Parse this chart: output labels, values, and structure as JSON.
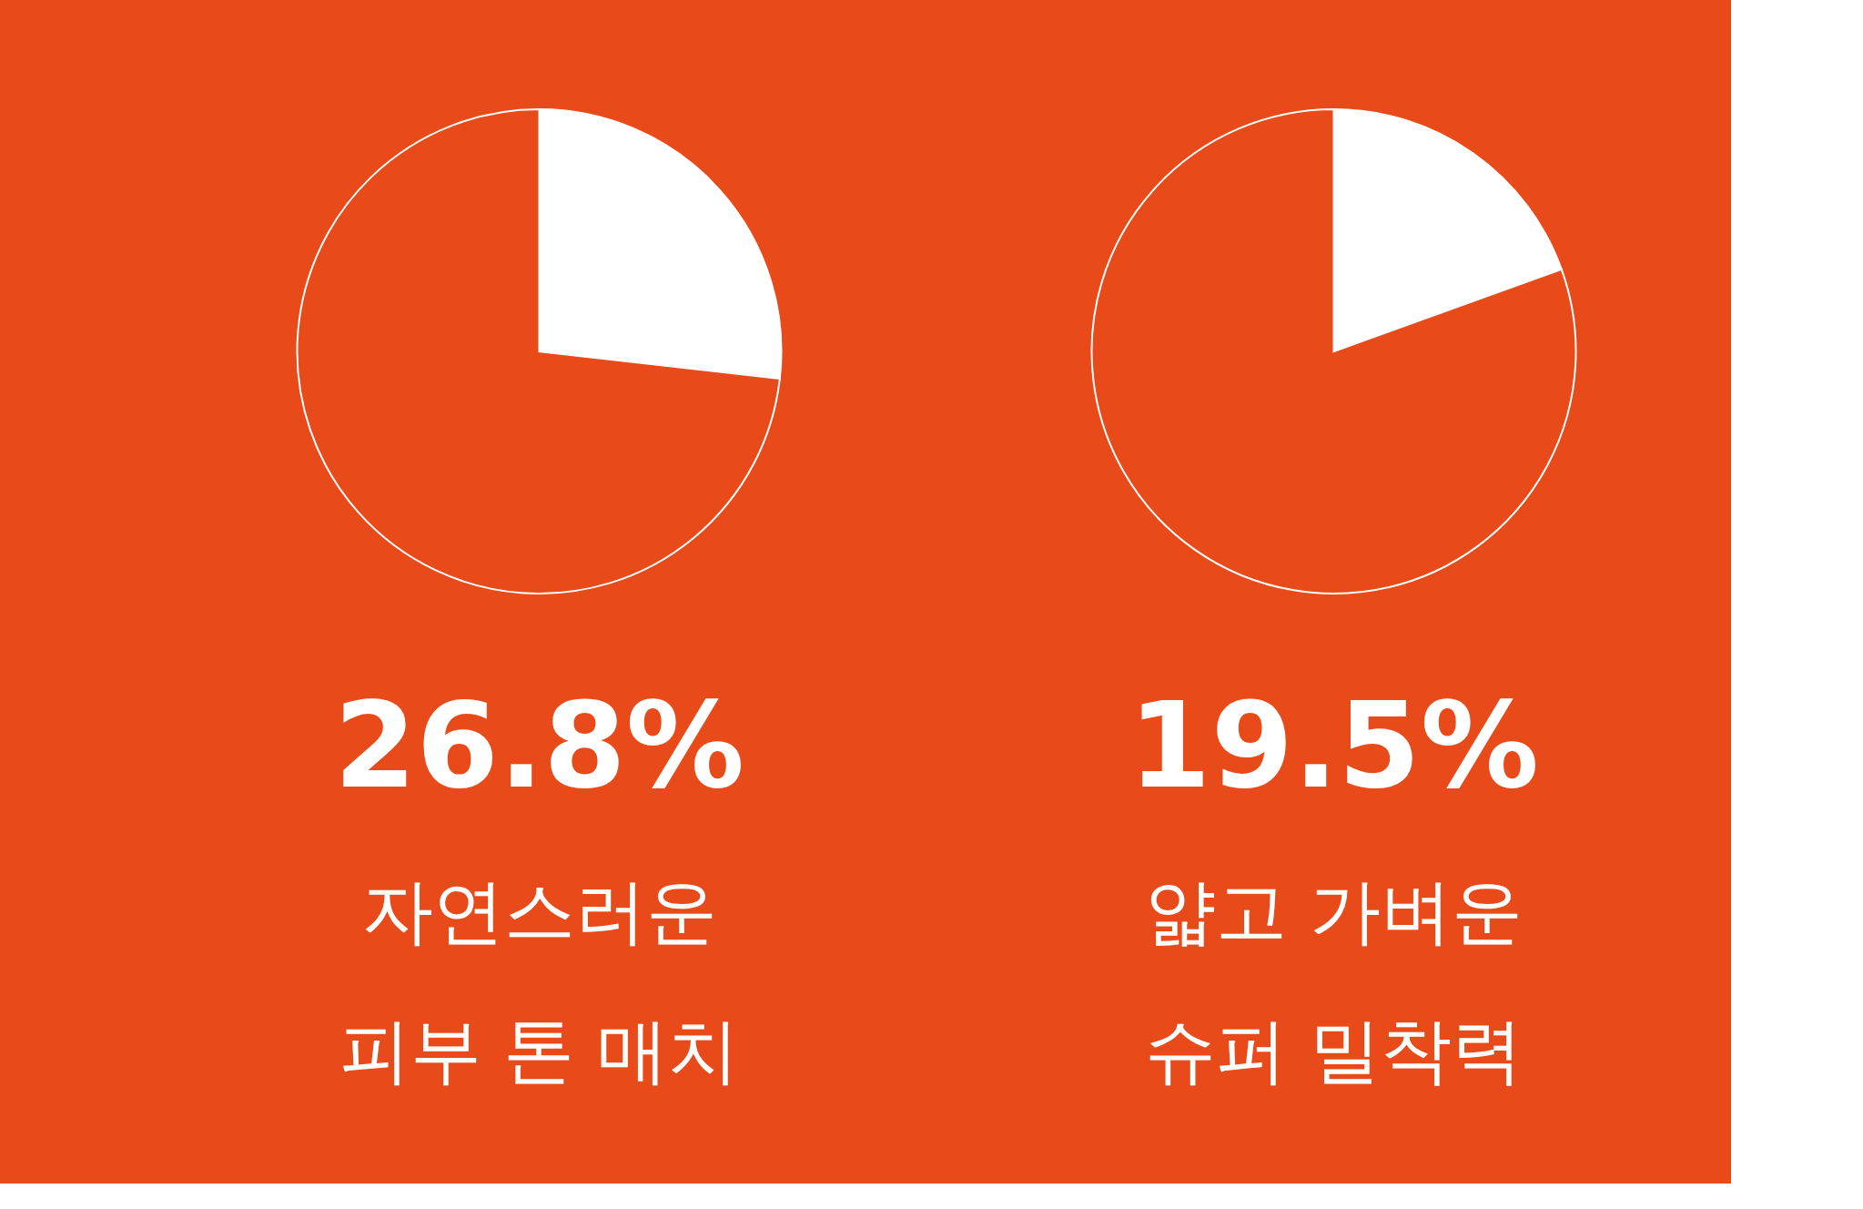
{
  "chart_data": [
    {
      "type": "pie",
      "categories": [
        null,
        null
      ],
      "values": [
        26.8,
        73.2
      ],
      "colors": [
        "#ffffff",
        "#e84a19"
      ],
      "legend": false,
      "annotations": [
        "26.8%",
        "자연스러운",
        "피부 톤 매치"
      ]
    },
    {
      "type": "pie",
      "categories": [
        null,
        null
      ],
      "values": [
        19.5,
        80.5
      ],
      "colors": [
        "#ffffff",
        "#e84a19"
      ],
      "legend": false,
      "annotations": [
        "19.5%",
        "얇고 가벼운",
        "슈퍼 밀착력"
      ]
    }
  ]
}
